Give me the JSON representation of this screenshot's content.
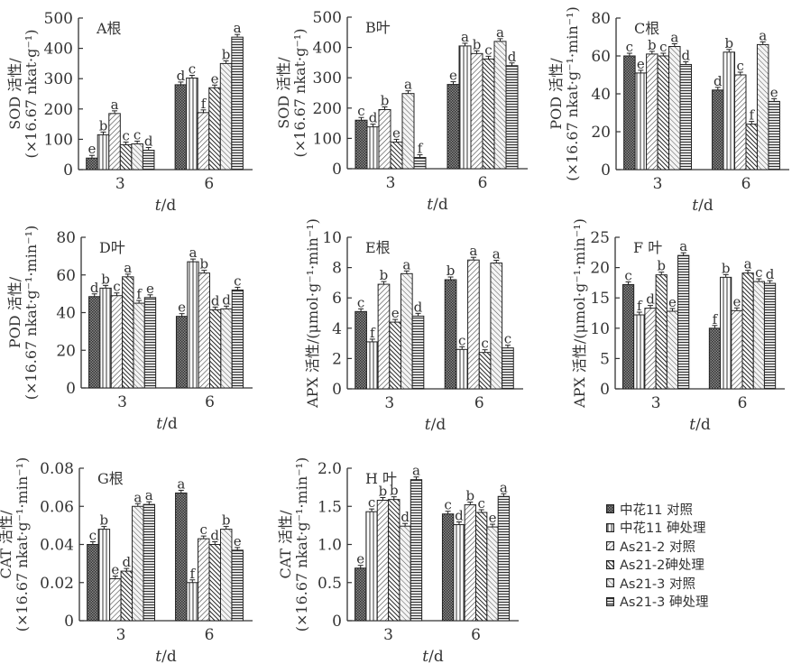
{
  "figure": {
    "legend": [
      {
        "label": "中花11 对照",
        "pattern": "crosshatch-dark"
      },
      {
        "label": "中花11 砷处理",
        "pattern": "vertical-lines"
      },
      {
        "label": "As21-2 对照",
        "pattern": "diag-right-light"
      },
      {
        "label": "As21-2砷处理",
        "pattern": "diag-left-dark"
      },
      {
        "label": "As21-3 对照",
        "pattern": "diag-left-light"
      },
      {
        "label": "As21-3 砷处理",
        "pattern": "horizontal-lines"
      }
    ]
  },
  "chart_data": [
    {
      "panel": "A",
      "title": "A根",
      "type": "bar",
      "ylabel_line1": "SOD 活性/",
      "ylabel_line2": "(×16.67 nkat·g⁻¹)",
      "xlabel": "t/d",
      "categories": [
        "3",
        "6"
      ],
      "ylim": [
        0,
        500
      ],
      "yticks": [
        0,
        100,
        200,
        300,
        400,
        500
      ],
      "ytick_labels": [
        "0",
        "100",
        "200",
        "300",
        "400",
        "500"
      ],
      "series": [
        {
          "name": "中花11 对照",
          "values": [
            38,
            280
          ],
          "letters": [
            "e",
            "d"
          ]
        },
        {
          "name": "中花11 砷处理",
          "values": [
            115,
            302
          ],
          "letters": [
            "b",
            "c"
          ]
        },
        {
          "name": "As21-2 对照",
          "values": [
            185,
            188
          ],
          "letters": [
            "a",
            "f"
          ]
        },
        {
          "name": "As21-2砷处理",
          "values": [
            82,
            270
          ],
          "letters": [
            "c",
            "e"
          ]
        },
        {
          "name": "As21-3 对照",
          "values": [
            85,
            350
          ],
          "letters": [
            "c",
            "b"
          ]
        },
        {
          "name": "As21-3 砷处理",
          "values": [
            64,
            437
          ],
          "letters": [
            "d",
            "a"
          ]
        }
      ]
    },
    {
      "panel": "B",
      "title": "B叶",
      "type": "bar",
      "ylabel_line1": "SOD 活性/",
      "ylabel_line2": "(×16.67 nkat·g⁻¹)",
      "xlabel": "t/d",
      "categories": [
        "3",
        "6"
      ],
      "ylim": [
        0,
        500
      ],
      "yticks": [
        0,
        100,
        200,
        300,
        400,
        500
      ],
      "ytick_labels": [
        "0",
        "100",
        "200",
        "300",
        "400",
        "500"
      ],
      "series": [
        {
          "name": "中花11 对照",
          "values": [
            160,
            278
          ],
          "letters": [
            "c",
            "e"
          ]
        },
        {
          "name": "中花11 砷处理",
          "values": [
            138,
            405
          ],
          "letters": [
            "d",
            "a"
          ]
        },
        {
          "name": "As21-2 对照",
          "values": [
            195,
            380
          ],
          "letters": [
            "b",
            "b"
          ]
        },
        {
          "name": "As21-2砷处理",
          "values": [
            88,
            362
          ],
          "letters": [
            "e",
            "c"
          ]
        },
        {
          "name": "As21-3 对照",
          "values": [
            248,
            420
          ],
          "letters": [
            "a",
            "a"
          ]
        },
        {
          "name": "As21-3 砷处理",
          "values": [
            37,
            340
          ],
          "letters": [
            "f",
            "d"
          ]
        }
      ]
    },
    {
      "panel": "C",
      "title": "C根",
      "type": "bar",
      "ylabel_line1": "POD 活性/",
      "ylabel_line2": "(×16.67 nkat·g⁻¹·min⁻¹)",
      "xlabel": "t/d",
      "categories": [
        "3",
        "6"
      ],
      "ylim": [
        0,
        80
      ],
      "yticks": [
        0,
        20,
        40,
        60,
        80
      ],
      "ytick_labels": [
        "0",
        "20",
        "40",
        "60",
        "80"
      ],
      "series": [
        {
          "name": "中花11 对照",
          "values": [
            60,
            42
          ],
          "letters": [
            "c",
            "d"
          ]
        },
        {
          "name": "中花11 砷处理",
          "values": [
            51,
            62
          ],
          "letters": [
            "e",
            "b"
          ]
        },
        {
          "name": "As21-2 对照",
          "values": [
            61,
            50
          ],
          "letters": [
            "b",
            "c"
          ]
        },
        {
          "name": "As21-2砷处理",
          "values": [
            60,
            24
          ],
          "letters": [
            "c",
            "f"
          ]
        },
        {
          "name": "As21-3 对照",
          "values": [
            65,
            66
          ],
          "letters": [
            "a",
            "a"
          ]
        },
        {
          "name": "As21-3 砷处理",
          "values": [
            55.5,
            36
          ],
          "letters": [
            "d",
            "e"
          ]
        }
      ]
    },
    {
      "panel": "D",
      "title": "D叶",
      "type": "bar",
      "ylabel_line1": "POD 活性/",
      "ylabel_line2": "(×16.67 nkat·g⁻¹·min⁻¹)",
      "xlabel": "t/d",
      "categories": [
        "3",
        "6"
      ],
      "ylim": [
        0,
        80
      ],
      "yticks": [
        0,
        20,
        40,
        60,
        80
      ],
      "ytick_labels": [
        "0",
        "20",
        "40",
        "60",
        "80"
      ],
      "series": [
        {
          "name": "中花11 对照",
          "values": [
            48.5,
            38
          ],
          "letters": [
            "d",
            "e"
          ]
        },
        {
          "name": "中花11 砷处理",
          "values": [
            53,
            67
          ],
          "letters": [
            "b",
            "a"
          ]
        },
        {
          "name": "As21-2 对照",
          "values": [
            49,
            61
          ],
          "letters": [
            "c",
            "b"
          ]
        },
        {
          "name": "As21-2砷处理",
          "values": [
            59,
            41.5
          ],
          "letters": [
            "a",
            "d"
          ]
        },
        {
          "name": "As21-3 对照",
          "values": [
            45,
            42
          ],
          "letters": [
            "f",
            "d"
          ]
        },
        {
          "name": "As21-3 砷处理",
          "values": [
            48,
            52
          ],
          "letters": [
            "e",
            "c"
          ]
        }
      ]
    },
    {
      "panel": "E",
      "title": "E根",
      "type": "bar",
      "ylabel_line1": "APX 活性/(μmol·g⁻¹·min⁻¹)",
      "ylabel_line2": "",
      "xlabel": "t/d",
      "categories": [
        "3",
        "6"
      ],
      "ylim": [
        0,
        10
      ],
      "yticks": [
        0,
        2,
        4,
        6,
        8,
        10
      ],
      "ytick_labels": [
        "0",
        "2",
        "4",
        "6",
        "8",
        "10"
      ],
      "series": [
        {
          "name": "中花11 对照",
          "values": [
            5.1,
            7.2
          ],
          "letters": [
            "c",
            "b"
          ]
        },
        {
          "name": "中花11 砷处理",
          "values": [
            3.1,
            2.6
          ],
          "letters": [
            "f",
            "c"
          ]
        },
        {
          "name": "As21-2 对照",
          "values": [
            6.9,
            8.5
          ],
          "letters": [
            "b",
            "a"
          ]
        },
        {
          "name": "As21-2砷处理",
          "values": [
            4.4,
            2.4
          ],
          "letters": [
            "e",
            "c"
          ]
        },
        {
          "name": "As21-3 对照",
          "values": [
            7.6,
            8.3
          ],
          "letters": [
            "a",
            "a"
          ]
        },
        {
          "name": "As21-3 砷处理",
          "values": [
            4.8,
            2.7
          ],
          "letters": [
            "d",
            "c"
          ]
        }
      ]
    },
    {
      "panel": "F",
      "title": "F 叶",
      "type": "bar",
      "ylabel_line1": "APX 活性/(μmol·g⁻¹·min⁻¹)",
      "ylabel_line2": "",
      "xlabel": "t/d",
      "categories": [
        "3",
        "6"
      ],
      "ylim": [
        0,
        25
      ],
      "yticks": [
        0,
        5,
        10,
        15,
        20,
        25
      ],
      "ytick_labels": [
        "0",
        "5",
        "10",
        "15",
        "20",
        "25"
      ],
      "series": [
        {
          "name": "中花11 对照",
          "values": [
            17.2,
            10
          ],
          "letters": [
            "c",
            "f"
          ]
        },
        {
          "name": "中花11 砷处理",
          "values": [
            12.2,
            18.4
          ],
          "letters": [
            "f",
            "b"
          ]
        },
        {
          "name": "As21-2 对照",
          "values": [
            13.3,
            12.9
          ],
          "letters": [
            "d",
            "e"
          ]
        },
        {
          "name": "As21-2砷处理",
          "values": [
            18.8,
            19.1
          ],
          "letters": [
            "b",
            "a"
          ]
        },
        {
          "name": "As21-3 对照",
          "values": [
            12.8,
            17.7
          ],
          "letters": [
            "e",
            "c"
          ]
        },
        {
          "name": "As21-3 砷处理",
          "values": [
            22,
            17.4
          ],
          "letters": [
            "a",
            "d"
          ]
        }
      ]
    },
    {
      "panel": "G",
      "title": "G根",
      "type": "bar",
      "ylabel_line1": "CAT 活性/",
      "ylabel_line2": "(×16.67 nkat·g⁻¹·min⁻¹)",
      "xlabel": "t/d",
      "categories": [
        "3",
        "6"
      ],
      "ylim": [
        0,
        0.08
      ],
      "yticks": [
        0,
        0.02,
        0.04,
        0.06,
        0.08
      ],
      "ytick_labels": [
        "0",
        "0.02",
        "0.04",
        "0.06",
        "0.08"
      ],
      "series": [
        {
          "name": "中花11 对照",
          "values": [
            0.04,
            0.067
          ],
          "letters": [
            "c",
            "a"
          ]
        },
        {
          "name": "中花11 砷处理",
          "values": [
            0.048,
            0.02
          ],
          "letters": [
            "b",
            "f"
          ]
        },
        {
          "name": "As21-2 对照",
          "values": [
            0.022,
            0.043
          ],
          "letters": [
            "e",
            "c"
          ]
        },
        {
          "name": "As21-2砷处理",
          "values": [
            0.026,
            0.04
          ],
          "letters": [
            "d",
            "d"
          ]
        },
        {
          "name": "As21-3 对照",
          "values": [
            0.06,
            0.048
          ],
          "letters": [
            "a",
            "b"
          ]
        },
        {
          "name": "As21-3 砷处理",
          "values": [
            0.061,
            0.037
          ],
          "letters": [
            "a",
            "e"
          ]
        }
      ]
    },
    {
      "panel": "H",
      "title": "H 叶",
      "type": "bar",
      "ylabel_line1": "CAT 活性/",
      "ylabel_line2": "(×16.67 nkat·g⁻¹·min⁻¹)",
      "xlabel": "t/d",
      "categories": [
        "3",
        "6"
      ],
      "ylim": [
        0,
        2.0
      ],
      "yticks": [
        0,
        0.5,
        1.0,
        1.5,
        2.0
      ],
      "ytick_labels": [
        "0",
        "0.5",
        "1.0",
        "1.5",
        "2.0"
      ],
      "series": [
        {
          "name": "中花11 对照",
          "values": [
            0.69,
            1.4
          ],
          "letters": [
            "e",
            "c"
          ]
        },
        {
          "name": "中花11 砷处理",
          "values": [
            1.43,
            1.26
          ],
          "letters": [
            "c",
            "d"
          ]
        },
        {
          "name": "As21-2 对照",
          "values": [
            1.58,
            1.52
          ],
          "letters": [
            "b",
            "b"
          ]
        },
        {
          "name": "As21-2砷处理",
          "values": [
            1.59,
            1.42
          ],
          "letters": [
            "b",
            "c"
          ]
        },
        {
          "name": "As21-3 对照",
          "values": [
            1.24,
            1.23
          ],
          "letters": [
            "d",
            "e"
          ]
        },
        {
          "name": "As21-3 砷处理",
          "values": [
            1.85,
            1.63
          ],
          "letters": [
            "a",
            "a"
          ]
        }
      ]
    }
  ]
}
